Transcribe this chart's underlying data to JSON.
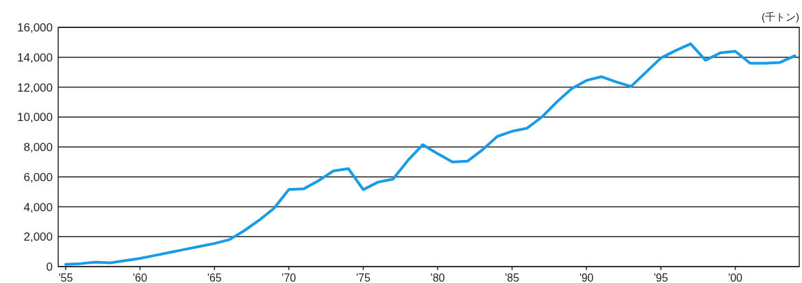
{
  "chart_data": {
    "type": "line",
    "ylabel": "(千トン)",
    "x": [
      1955,
      1956,
      1957,
      1958,
      1959,
      1960,
      1961,
      1962,
      1963,
      1964,
      1965,
      1966,
      1967,
      1968,
      1969,
      1970,
      1971,
      1972,
      1973,
      1974,
      1975,
      1976,
      1977,
      1978,
      1979,
      1980,
      1981,
      1982,
      1983,
      1984,
      1985,
      1986,
      1987,
      1988,
      1989,
      1990,
      1991,
      1992,
      1993,
      1994,
      1995,
      1996,
      1997,
      1998,
      1999,
      2000,
      2001,
      2002,
      2003,
      2004
    ],
    "series": [
      {
        "color": "#1a9be6",
        "values": [
          150,
          200,
          300,
          250,
          400,
          550,
          750,
          950,
          1150,
          1350,
          1550,
          1800,
          2400,
          3100,
          3900,
          5150,
          5200,
          5750,
          6400,
          6550,
          5150,
          5650,
          5850,
          7100,
          8150,
          7550,
          7000,
          7050,
          7800,
          8700,
          9050,
          9250,
          10000,
          11000,
          11900,
          12450,
          12700,
          12350,
          12050,
          13000,
          13950,
          14450,
          14900,
          13800,
          14300,
          14400,
          13600,
          13600,
          13650,
          14100
        ]
      }
    ],
    "xlim": [
      1954.5,
      2004.3
    ],
    "ylim": [
      0,
      16000
    ],
    "xticks": [
      {
        "value": 1955,
        "label": "'55"
      },
      {
        "value": 1960,
        "label": "'60"
      },
      {
        "value": 1965,
        "label": "'65"
      },
      {
        "value": 1970,
        "label": "'70"
      },
      {
        "value": 1975,
        "label": "'75"
      },
      {
        "value": 1980,
        "label": "'80"
      },
      {
        "value": 1985,
        "label": "'85"
      },
      {
        "value": 1990,
        "label": "'90"
      },
      {
        "value": 1995,
        "label": "'95"
      },
      {
        "value": 2000,
        "label": "'00"
      }
    ],
    "yticks": [
      {
        "value": 0,
        "label": "0"
      },
      {
        "value": 2000,
        "label": "2,000"
      },
      {
        "value": 4000,
        "label": "4,000"
      },
      {
        "value": 6000,
        "label": "6,000"
      },
      {
        "value": 8000,
        "label": "8,000"
      },
      {
        "value": 10000,
        "label": "10,000"
      },
      {
        "value": 12000,
        "label": "12,000"
      },
      {
        "value": 14000,
        "label": "14,000"
      },
      {
        "value": 16000,
        "label": "16,000"
      }
    ],
    "grid": "y",
    "marker": "none",
    "line_style": "solid"
  }
}
